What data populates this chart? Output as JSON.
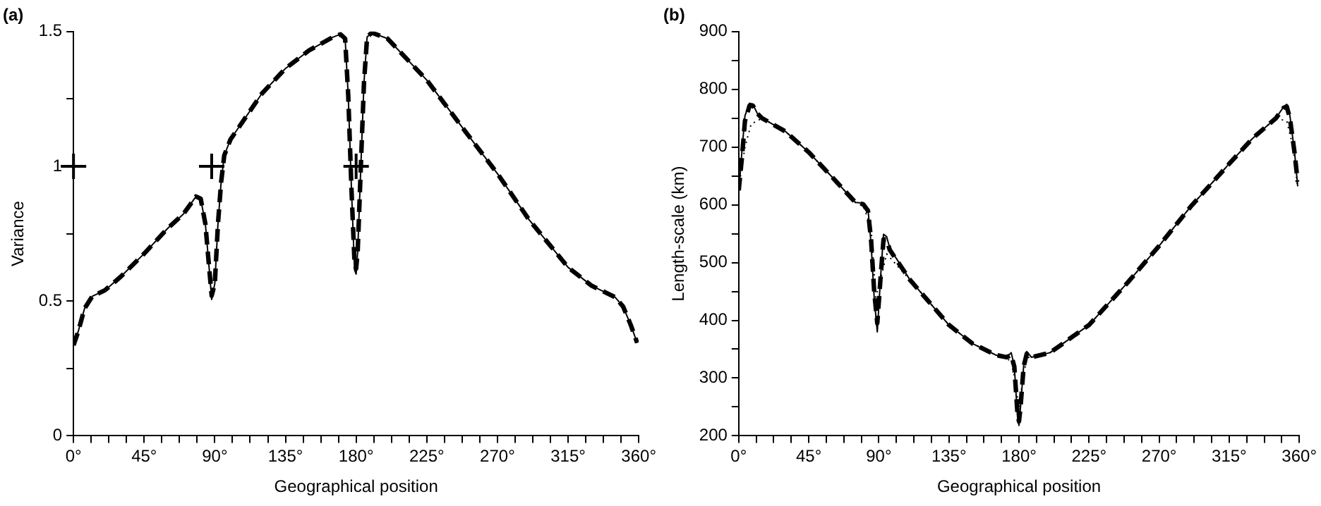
{
  "chart_data": [
    {
      "type": "line",
      "title": "(a)",
      "xlabel": "Geographical position",
      "ylabel": "Variance",
      "grid": false,
      "legend": false,
      "xlim": [
        0,
        360
      ],
      "ylim": [
        0,
        1.5
      ],
      "xticks": [
        {
          "value": 0,
          "label": "0°"
        },
        {
          "value": 11.25,
          "label": null
        },
        {
          "value": 22.5,
          "label": null
        },
        {
          "value": 33.75,
          "label": null
        },
        {
          "value": 45,
          "label": "45°"
        },
        {
          "value": 56.25,
          "label": null
        },
        {
          "value": 67.5,
          "label": null
        },
        {
          "value": 78.75,
          "label": null
        },
        {
          "value": 90,
          "label": "90°"
        },
        {
          "value": 101.25,
          "label": null
        },
        {
          "value": 112.5,
          "label": null
        },
        {
          "value": 123.75,
          "label": null
        },
        {
          "value": 135,
          "label": "135°"
        },
        {
          "value": 146.25,
          "label": null
        },
        {
          "value": 157.5,
          "label": null
        },
        {
          "value": 168.75,
          "label": null
        },
        {
          "value": 180,
          "label": "180°"
        },
        {
          "value": 191.25,
          "label": null
        },
        {
          "value": 202.5,
          "label": null
        },
        {
          "value": 213.75,
          "label": null
        },
        {
          "value": 225,
          "label": "225°"
        },
        {
          "value": 236.25,
          "label": null
        },
        {
          "value": 247.5,
          "label": null
        },
        {
          "value": 258.75,
          "label": null
        },
        {
          "value": 270,
          "label": "270°"
        },
        {
          "value": 281.25,
          "label": null
        },
        {
          "value": 292.5,
          "label": null
        },
        {
          "value": 303.75,
          "label": null
        },
        {
          "value": 315,
          "label": "315°"
        },
        {
          "value": 326.25,
          "label": null
        },
        {
          "value": 337.5,
          "label": null
        },
        {
          "value": 348.75,
          "label": null
        },
        {
          "value": 360,
          "label": "360°"
        }
      ],
      "yticks": [
        0,
        {
          "value": 0.25,
          "label": null
        },
        0.5,
        {
          "value": 0.75,
          "label": null
        },
        1,
        {
          "value": 1.25,
          "label": null
        },
        1.5
      ],
      "series": [
        {
          "type": "line",
          "line_style": "solid",
          "color": "#000000",
          "x": [
            0,
            3,
            7,
            12,
            20,
            30,
            45,
            60,
            70,
            78,
            81,
            84,
            86,
            88,
            90,
            92,
            94,
            96,
            100,
            110,
            120,
            135,
            150,
            165,
            170,
            173,
            175,
            177,
            179,
            180,
            181,
            183,
            185,
            187,
            190,
            200,
            225,
            250,
            270,
            290,
            315,
            330,
            345,
            350,
            355,
            359
          ],
          "values": [
            0.336,
            0.387,
            0.472,
            0.518,
            0.54,
            0.59,
            0.676,
            0.77,
            0.823,
            0.888,
            0.88,
            0.786,
            0.65,
            0.506,
            0.565,
            0.786,
            0.94,
            1.04,
            1.1,
            1.185,
            1.27,
            1.363,
            1.43,
            1.479,
            1.49,
            1.474,
            1.26,
            0.92,
            0.616,
            0.6,
            0.684,
            1.0,
            1.31,
            1.48,
            1.496,
            1.474,
            1.32,
            1.126,
            0.973,
            0.803,
            0.625,
            0.557,
            0.514,
            0.48,
            0.41,
            0.345
          ]
        },
        {
          "type": "line",
          "line_style": "dashed",
          "color": "#000000",
          "x": [
            0,
            3,
            7,
            12,
            20,
            30,
            45,
            60,
            70,
            78,
            81,
            84,
            86,
            88,
            90,
            92,
            94,
            96,
            100,
            110,
            120,
            135,
            150,
            165,
            170,
            173,
            175,
            177,
            179,
            180,
            181,
            183,
            185,
            187,
            190,
            200,
            225,
            250,
            270,
            290,
            315,
            330,
            345,
            350,
            355,
            359
          ],
          "values": [
            0.336,
            0.387,
            0.472,
            0.518,
            0.54,
            0.59,
            0.676,
            0.77,
            0.823,
            0.888,
            0.88,
            0.786,
            0.65,
            0.52,
            0.565,
            0.786,
            0.94,
            1.04,
            1.1,
            1.185,
            1.27,
            1.363,
            1.43,
            1.479,
            1.49,
            1.474,
            1.26,
            0.92,
            0.64,
            0.62,
            0.684,
            1.0,
            1.31,
            1.48,
            1.496,
            1.474,
            1.32,
            1.126,
            0.973,
            0.803,
            0.625,
            0.557,
            0.514,
            0.48,
            0.41,
            0.345
          ]
        },
        {
          "type": "scatter",
          "marker": "cross",
          "color": "#000000",
          "x": [
            0,
            88,
            180
          ],
          "values": [
            1,
            1,
            1
          ]
        }
      ]
    },
    {
      "type": "line",
      "title": "(b)",
      "xlabel": "Geographical position",
      "ylabel": "Length-scale (km)",
      "grid": false,
      "legend": false,
      "xlim": [
        0,
        360
      ],
      "ylim": [
        200,
        900
      ],
      "xticks": [
        {
          "value": 0,
          "label": "0°"
        },
        {
          "value": 11.25,
          "label": null
        },
        {
          "value": 22.5,
          "label": null
        },
        {
          "value": 33.75,
          "label": null
        },
        {
          "value": 45,
          "label": "45°"
        },
        {
          "value": 56.25,
          "label": null
        },
        {
          "value": 67.5,
          "label": null
        },
        {
          "value": 78.75,
          "label": null
        },
        {
          "value": 90,
          "label": "90°"
        },
        {
          "value": 101.25,
          "label": null
        },
        {
          "value": 112.5,
          "label": null
        },
        {
          "value": 123.75,
          "label": null
        },
        {
          "value": 135,
          "label": "135°"
        },
        {
          "value": 146.25,
          "label": null
        },
        {
          "value": 157.5,
          "label": null
        },
        {
          "value": 168.75,
          "label": null
        },
        {
          "value": 180,
          "label": "180°"
        },
        {
          "value": 191.25,
          "label": null
        },
        {
          "value": 202.5,
          "label": null
        },
        {
          "value": 213.75,
          "label": null
        },
        {
          "value": 225,
          "label": "225°"
        },
        {
          "value": 236.25,
          "label": null
        },
        {
          "value": 247.5,
          "label": null
        },
        {
          "value": 258.75,
          "label": null
        },
        {
          "value": 270,
          "label": "270°"
        },
        {
          "value": 281.25,
          "label": null
        },
        {
          "value": 292.5,
          "label": null
        },
        {
          "value": 303.75,
          "label": null
        },
        {
          "value": 315,
          "label": "315°"
        },
        {
          "value": 326.25,
          "label": null
        },
        {
          "value": 337.5,
          "label": null
        },
        {
          "value": 348.75,
          "label": null
        },
        {
          "value": 360,
          "label": "360°"
        }
      ],
      "yticks": [
        200,
        {
          "value": 250,
          "label": null
        },
        300,
        {
          "value": 350,
          "label": null
        },
        400,
        {
          "value": 450,
          "label": null
        },
        500,
        {
          "value": 550,
          "label": null
        },
        600,
        {
          "value": 650,
          "label": null
        },
        700,
        {
          "value": 750,
          "label": null
        },
        800,
        {
          "value": 850,
          "label": null
        },
        900
      ],
      "series": [
        {
          "type": "line",
          "line_style": "solid",
          "color": "#000000",
          "x": [
            0,
            2,
            4,
            7,
            9,
            12,
            15,
            30,
            45,
            60,
            75,
            80,
            83,
            85,
            87,
            89,
            91,
            93,
            95,
            97,
            110,
            135,
            150,
            165,
            172,
            175,
            177,
            179,
            180,
            181,
            183,
            185,
            188,
            200,
            225,
            250,
            270,
            290,
            315,
            330,
            345,
            350,
            352,
            354,
            357,
            359
          ],
          "values": [
            620,
            691,
            754,
            776,
            774,
            758,
            750,
            727,
            691,
            648,
            604,
            603,
            593,
            533,
            439,
            380,
            470,
            549,
            545,
            525,
            470,
            392,
            360,
            340,
            336,
            344,
            321,
            234,
            218,
            250,
            321,
            346,
            336,
            344,
            392,
            466,
            529,
            596,
            671,
            715,
            750,
            770,
            774,
            754,
            691,
            632
          ]
        },
        {
          "type": "line",
          "line_style": "dashed",
          "color": "#000000",
          "x": [
            0,
            2,
            4,
            7,
            9,
            12,
            15,
            30,
            45,
            60,
            75,
            80,
            83,
            85,
            87,
            89,
            91,
            93,
            95,
            97,
            110,
            135,
            150,
            165,
            172,
            175,
            177,
            179,
            180,
            181,
            183,
            185,
            188,
            200,
            225,
            250,
            270,
            290,
            315,
            330,
            345,
            350,
            352,
            354,
            357,
            359
          ],
          "values": [
            625,
            680,
            745,
            772,
            772,
            758,
            750,
            727,
            691,
            648,
            604,
            601,
            590,
            540,
            450,
            395,
            470,
            540,
            540,
            522,
            470,
            392,
            360,
            340,
            336,
            340,
            320,
            240,
            225,
            250,
            320,
            342,
            336,
            344,
            392,
            466,
            529,
            596,
            671,
            715,
            750,
            768,
            770,
            750,
            690,
            640
          ]
        },
        {
          "type": "line",
          "line_style": "dotted",
          "color": "#000000",
          "x": [
            0,
            4,
            8,
            15,
            30,
            45,
            60,
            75,
            80,
            85,
            88,
            91,
            95,
            110,
            135,
            150,
            165,
            175,
            178,
            180,
            182,
            185,
            200,
            225,
            250,
            270,
            290,
            315,
            330,
            345,
            352,
            356,
            359
          ],
          "values": [
            630,
            700,
            740,
            750,
            727,
            691,
            648,
            604,
            598,
            560,
            440,
            470,
            515,
            470,
            392,
            360,
            340,
            330,
            290,
            240,
            290,
            335,
            344,
            392,
            466,
            529,
            596,
            671,
            715,
            750,
            745,
            700,
            630
          ]
        }
      ]
    }
  ]
}
